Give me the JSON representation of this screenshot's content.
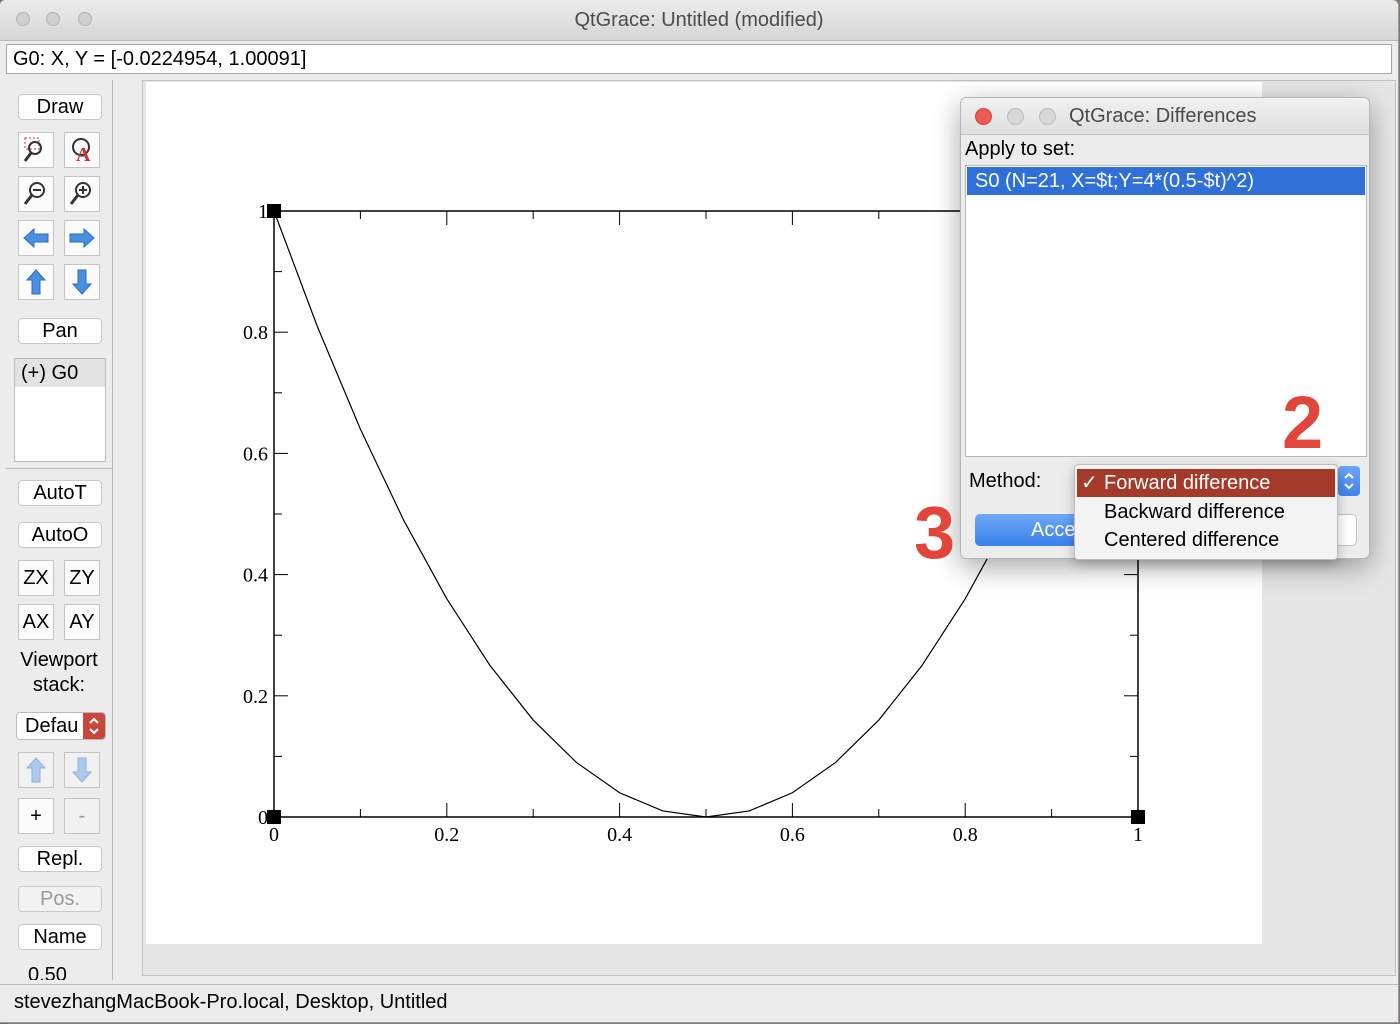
{
  "window": {
    "title": "QtGrace: Untitled (modified)"
  },
  "locator": "G0: X, Y = [-0.0224954, 1.00091]",
  "toolbar": {
    "draw": "Draw",
    "pan": "Pan",
    "graph_list": [
      "(+) G0"
    ],
    "autot": "AutoT",
    "autoo": "AutoO",
    "zx": "ZX",
    "zy": "ZY",
    "ax": "AX",
    "ay": "AY",
    "viewport_label_1": "Viewport",
    "viewport_label_2": "stack:",
    "viewport_select": "Defau",
    "plus": "+",
    "minus": "-",
    "repl": "Repl.",
    "pos": "Pos.",
    "name": "Name",
    "value_cut": "0.50",
    "icons": [
      "zoom-rect-icon",
      "text-annotation-icon",
      "zoom-out-icon",
      "zoom-in-icon",
      "arrow-left-icon",
      "arrow-right-icon",
      "arrow-up-icon",
      "arrow-down-icon",
      "stack-up-icon",
      "stack-down-icon"
    ]
  },
  "chart_data": {
    "type": "line",
    "xlim": [
      0,
      1
    ],
    "ylim": [
      0,
      1
    ],
    "x_ticks": [
      "0",
      "0.2",
      "0.4",
      "0.6",
      "0.8",
      "1"
    ],
    "y_ticks": [
      "0",
      "0.2",
      "0.4",
      "0.6",
      "0.8",
      "1"
    ],
    "series": [
      {
        "x": [
          0,
          0.05,
          0.1,
          0.15,
          0.2,
          0.25,
          0.3,
          0.35,
          0.4,
          0.45,
          0.5,
          0.55,
          0.6,
          0.65,
          0.7,
          0.75,
          0.8,
          0.85,
          0.9,
          0.95,
          1
        ],
        "y": [
          1,
          0.81,
          0.64,
          0.49,
          0.36,
          0.25,
          0.16,
          0.09,
          0.04,
          0.01,
          0,
          0.01,
          0.04,
          0.09,
          0.16,
          0.25,
          0.36,
          0.49,
          0.64,
          0.81,
          1
        ]
      }
    ]
  },
  "dialog": {
    "title": "QtGrace: Differences",
    "apply_label": "Apply to set:",
    "sets": [
      "S0 (N=21, X=$t;Y=4*(0.5-$t)^2)"
    ],
    "method_label": "Method:",
    "accept_label": "Accept",
    "method_options": [
      "Forward difference",
      "Backward difference",
      "Centered difference"
    ],
    "selected_check": "✓"
  },
  "annotations": {
    "two": "2",
    "three": "3"
  },
  "status": "stevezhangMacBook-Pro.local, Desktop, Untitled",
  "colors": {
    "selection": "#2e6fd8",
    "menu_active": "#a33a2a",
    "annotation": "#e2463a",
    "icon_blue": "#4a90e2"
  }
}
